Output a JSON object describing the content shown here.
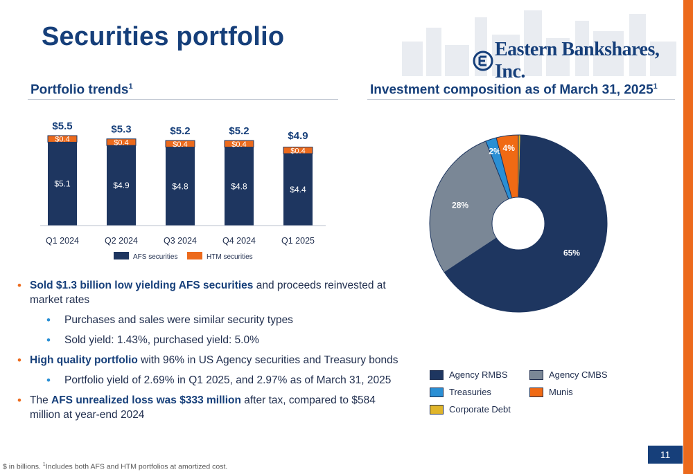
{
  "title": "Securities portfolio",
  "company": "Eastern Bankshares, Inc.",
  "left_section": {
    "heading": "Portfolio trends",
    "sup": "1"
  },
  "right_section": {
    "heading": "Investment composition as of March 31, 2025",
    "sup": "1"
  },
  "chart_data": [
    {
      "type": "bar",
      "stacked": true,
      "categories": [
        "Q1 2024",
        "Q2 2024",
        "Q3 2024",
        "Q4 2024",
        "Q1 2025"
      ],
      "series": [
        {
          "name": "AFS securities",
          "values": [
            5.1,
            4.9,
            4.8,
            4.8,
            4.4
          ],
          "labels": [
            "$5.1",
            "$4.9",
            "$4.8",
            "$4.8",
            "$4.4"
          ],
          "color": "#1e3660"
        },
        {
          "name": "HTM securities",
          "values": [
            0.4,
            0.4,
            0.4,
            0.4,
            0.4
          ],
          "labels": [
            "$0.4",
            "$0.4",
            "$0.4",
            "$0.4",
            "$0.4"
          ],
          "color": "#ec6a1c"
        }
      ],
      "totals": [
        "$5.5",
        "$5.3",
        "$5.2",
        "$5.2",
        "$4.9"
      ],
      "total_values": [
        5.5,
        5.3,
        5.2,
        5.2,
        4.9
      ],
      "ylim": [
        0,
        5.5
      ],
      "legend_position": "bottom",
      "grid": false
    },
    {
      "type": "pie",
      "donut": true,
      "slices": [
        {
          "name": "Corporate Debt",
          "value": 0.4,
          "label": "",
          "color": "#e0b52a"
        },
        {
          "name": "Agency RMBS",
          "value": 65.3,
          "label": "65%",
          "color": "#1e3660"
        },
        {
          "name": "Agency CMBS",
          "value": 28.3,
          "label": "28%",
          "color": "#7a8796"
        },
        {
          "name": "Treasuries",
          "value": 2.0,
          "label": "2%",
          "color": "#2a8fd4"
        },
        {
          "name": "Munis",
          "value": 4.0,
          "label": "4%",
          "color": "#f06a14"
        }
      ],
      "legend_position": "bottom"
    }
  ],
  "bullets": {
    "b1": {
      "strong": "Sold $1.3 billion low yielding AFS securities",
      "rest": " and proceeds reinvested at market rates"
    },
    "b1a": "Purchases and sales were similar security types",
    "b1b": "Sold yield: 1.43%, purchased yield: 5.0%",
    "b2": {
      "strong": "High quality portfolio",
      "rest": " with 96% in US Agency securities and Treasury bonds"
    },
    "b2a": "Portfolio yield of 2.69% in Q1 2025, and 2.97% as of March 31, 2025",
    "b3": {
      "pre": "The ",
      "strong": "AFS unrealized loss was $333 million",
      "rest": " after tax, compared to $584 million at year-end 2024"
    }
  },
  "pie_legend": [
    {
      "name": "Agency RMBS",
      "color": "#1e3660"
    },
    {
      "name": "Agency CMBS",
      "color": "#7a8796"
    },
    {
      "name": "Treasuries",
      "color": "#2a8fd4"
    },
    {
      "name": "Munis",
      "color": "#f06a14"
    },
    {
      "name": "Corporate Debt",
      "color": "#e0b52a"
    }
  ],
  "page_number": "11",
  "footnote": {
    "pre": "$ in billions. ",
    "sup": "1",
    "text": "Includes both AFS and HTM portfolios at amortized cost."
  }
}
